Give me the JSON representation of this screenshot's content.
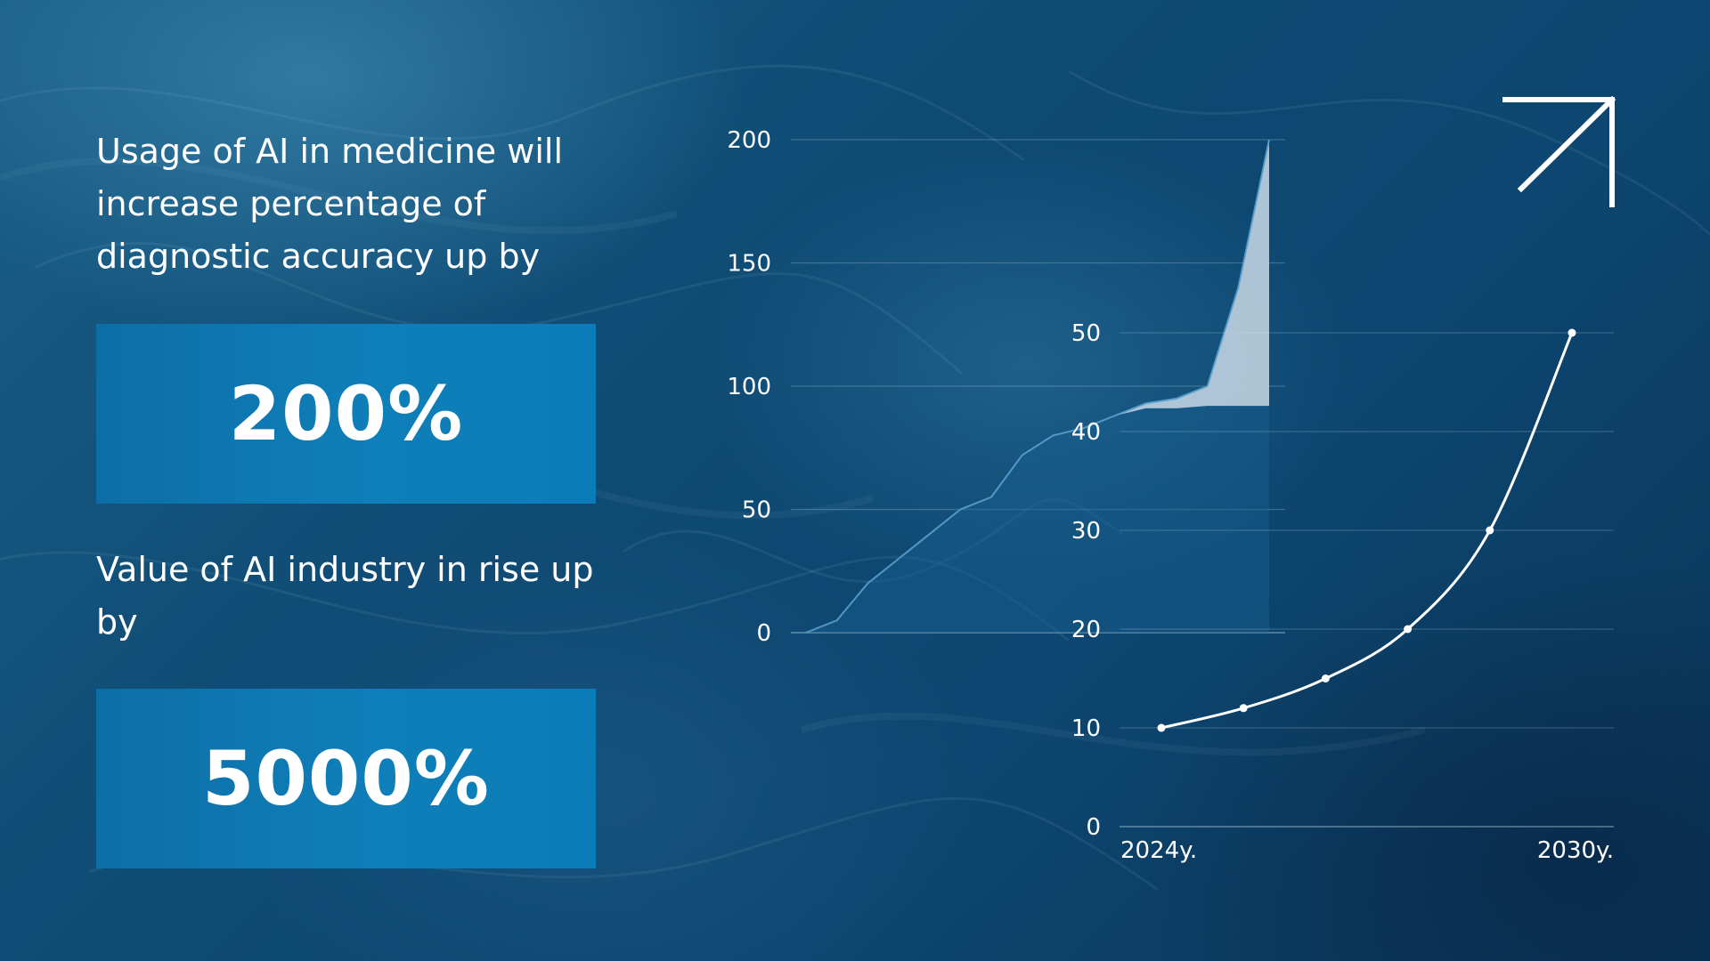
{
  "text": {
    "headline_1": "Usage of AI in medicine will increase percentage of diagnostic accuracy up by",
    "stat_1": "200%",
    "headline_2": "Value of AI industry in rise up by",
    "stat_2": "5000%"
  },
  "colors": {
    "background": "#0f4a73",
    "stat_box": "#0f7fb9",
    "text": "#ffffff",
    "area_fill": "#c8d8e4"
  },
  "icons": [
    "arrow-up-right-icon"
  ],
  "chart_data": [
    {
      "type": "area",
      "title": "",
      "xlabel": "",
      "ylabel": "",
      "ylim": [
        0,
        200
      ],
      "yticks": [
        0,
        50,
        100,
        150,
        200
      ],
      "grid": true,
      "series": [
        {
          "values": [
            0,
            5,
            20,
            30,
            40,
            50,
            55,
            72,
            80,
            83,
            88,
            93,
            95,
            100,
            140,
            200
          ]
        },
        {
          "values": [
            null,
            null,
            null,
            null,
            null,
            null,
            null,
            null,
            null,
            null,
            null,
            91,
            91,
            92,
            92,
            92
          ]
        }
      ]
    },
    {
      "type": "line",
      "title": "",
      "xlabel": "",
      "ylabel": "",
      "x": [
        2024,
        2025,
        2026,
        2027,
        2028,
        2029
      ],
      "values": [
        10,
        12,
        15,
        20,
        30,
        50
      ],
      "xtick_labels": [
        "2024y.",
        "2030y."
      ],
      "ylim": [
        0,
        50
      ],
      "yticks": [
        0,
        10,
        20,
        30,
        40,
        50
      ],
      "grid": true,
      "markers": true
    }
  ]
}
